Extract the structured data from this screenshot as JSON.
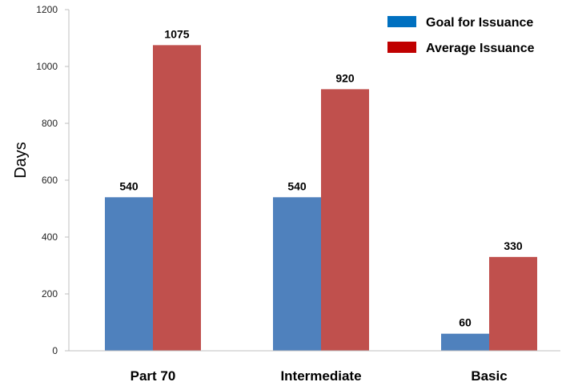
{
  "chart_data": {
    "type": "bar",
    "title": "",
    "xlabel": "",
    "ylabel": "Days",
    "categories": [
      "Part 70",
      "Intermediate",
      "Basic"
    ],
    "series": [
      {
        "name": "Goal for Issuance",
        "values": [
          540,
          540,
          60
        ],
        "color": "#4f81bd"
      },
      {
        "name": "Average Issuance",
        "values": [
          1075,
          920,
          330
        ],
        "color": "#c0504d"
      }
    ],
    "ylim": [
      0,
      1200
    ],
    "yticks": [
      0,
      200,
      400,
      600,
      800,
      1000,
      1200
    ],
    "grid": false,
    "legend_position": "top-right",
    "legend_swatch_colors": [
      "#0070c0",
      "#c00000"
    ]
  }
}
